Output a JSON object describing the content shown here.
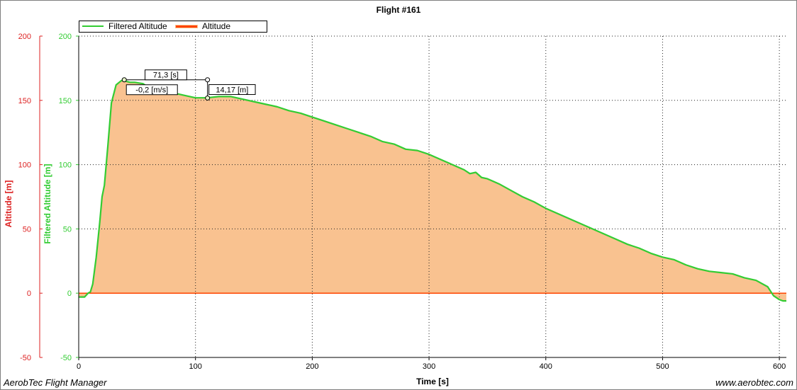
{
  "footer": {
    "left": "AerobTec Flight Manager",
    "right": "www.aerobtec.com"
  },
  "colors": {
    "filtered": "#33cc33",
    "altitude": "#ff4400",
    "fill": "#f9c290",
    "left_axis": "#dd2222",
    "right_axis": "#33cc33"
  },
  "chart_data": {
    "type": "area",
    "title": "Flight #161",
    "xlabel": "Time [s]",
    "ylabel_left": "Altitude [m]",
    "ylabel_right": "Filtered Altitude [m]",
    "xlim": [
      0,
      606
    ],
    "ylim": [
      -50,
      200
    ],
    "xticks": [
      0,
      100,
      200,
      300,
      400,
      500,
      600
    ],
    "yticks": [
      -50,
      0,
      50,
      100,
      150,
      200
    ],
    "grid": true,
    "legend": "top-left",
    "series": [
      {
        "name": "Filtered Altitude",
        "x": [
          0,
          5,
          8,
          10,
          12,
          15,
          18,
          20,
          22,
          25,
          28,
          32,
          36,
          38,
          40,
          44,
          48,
          55,
          60,
          70,
          80,
          90,
          100,
          110,
          120,
          130,
          140,
          150,
          160,
          170,
          180,
          190,
          200,
          210,
          220,
          230,
          240,
          250,
          260,
          270,
          280,
          290,
          300,
          310,
          320,
          330,
          335,
          340,
          345,
          350,
          360,
          370,
          380,
          390,
          400,
          410,
          420,
          430,
          440,
          450,
          460,
          470,
          480,
          490,
          500,
          510,
          520,
          530,
          540,
          550,
          560,
          570,
          580,
          590,
          595,
          600,
          603,
          606
        ],
        "values": [
          -3,
          -3,
          0,
          1,
          7,
          28,
          55,
          75,
          84,
          115,
          148,
          162,
          165,
          166,
          165,
          164,
          164,
          163,
          160,
          158,
          156,
          154,
          152,
          152,
          153,
          153,
          151,
          149,
          147,
          145,
          142,
          140,
          137,
          134,
          131,
          128,
          125,
          122,
          118,
          116,
          112,
          111,
          108,
          104,
          100,
          96,
          93,
          94,
          90,
          89,
          85,
          80,
          75,
          71,
          66,
          62,
          58,
          54,
          50,
          46,
          42,
          38,
          35,
          31,
          28,
          26,
          22,
          19,
          17,
          16,
          15,
          12,
          10,
          5,
          -2,
          -5,
          -6,
          -6
        ]
      },
      {
        "name": "Altitude",
        "x": [
          0,
          606
        ],
        "values": [
          0,
          0
        ]
      }
    ],
    "annotations": {
      "duration_label": "71,3 [s]",
      "rate_label": "-0,2 [m/s]",
      "height_label": "14,17 [m]",
      "start": {
        "x": 39,
        "y": 166
      },
      "end": {
        "x": 110.3,
        "y": 151.8
      }
    }
  }
}
